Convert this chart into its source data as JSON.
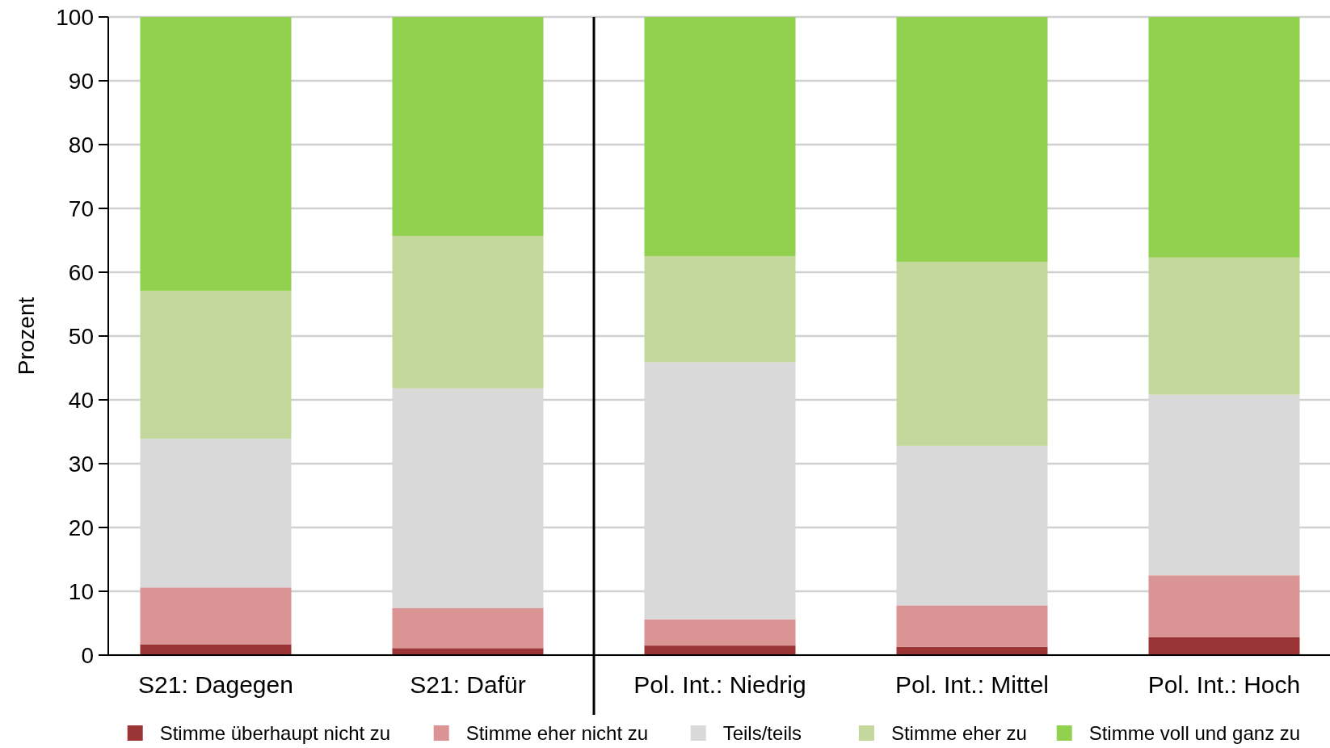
{
  "chart_data": [
    {
      "type": "bar",
      "stacked": true,
      "ylabel": "Prozent",
      "categories": [
        "S21: Dagegen",
        "S21: Dafür"
      ],
      "series": [
        {
          "name": "Stimme überhaupt nicht zu",
          "color": "#9b3535",
          "values": [
            1.7,
            1.1
          ]
        },
        {
          "name": "Stimme eher nicht zu",
          "color": "#da9494",
          "values": [
            8.9,
            6.3
          ]
        },
        {
          "name": "Teils/teils",
          "color": "#d9d9d9",
          "values": [
            23.3,
            34.4
          ]
        },
        {
          "name": "Stimme eher zu",
          "color": "#c4d79d",
          "values": [
            23.2,
            23.9
          ]
        },
        {
          "name": "Stimme voll und ganz zu",
          "color": "#92d150",
          "values": [
            42.9,
            34.3
          ]
        }
      ],
      "ylim": [
        0,
        100
      ],
      "yticks": [
        0,
        10,
        20,
        30,
        40,
        50,
        60,
        70,
        80,
        90,
        100
      ],
      "grid": "y",
      "legend": "bottom"
    },
    {
      "type": "bar",
      "stacked": true,
      "categories": [
        "Pol. Int.: Niedrig",
        "Pol. Int.: Mittel",
        "Pol. Int.: Hoch"
      ],
      "series": [
        {
          "color": "#9b3535",
          "values": [
            1.5,
            1.3,
            2.8
          ]
        },
        {
          "color": "#da9494",
          "values": [
            4.1,
            6.5,
            9.7
          ]
        },
        {
          "color": "#d9d9d9",
          "values": [
            40.3,
            25.0,
            28.3
          ]
        },
        {
          "color": "#c4d79d",
          "values": [
            16.6,
            28.8,
            21.5
          ]
        },
        {
          "color": "#92d150",
          "values": [
            37.5,
            38.4,
            37.7
          ]
        }
      ],
      "ylim": [
        0,
        100
      ],
      "yticks": [
        0,
        10,
        20,
        30,
        40,
        50,
        60,
        70,
        80,
        90,
        100
      ],
      "grid": "y",
      "tick_labels": "x"
    }
  ]
}
